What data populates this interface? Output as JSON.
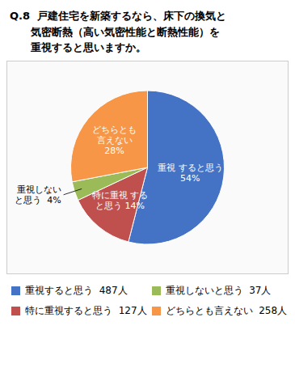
{
  "chart_data": {
    "type": "pie",
    "title": "Q.8  戸建住宅を新築するなら、床下の換気と\n　　気密断熱（高い気密性能と断熱性能）を\n　　重視すると思いますか。",
    "categories": [
      "重視すると思う  487人",
      "特に重視すると思う  127人",
      "重視しないと思う  37人",
      "どちらとも言えない  258人"
    ],
    "values": [
      54,
      14,
      4,
      28
    ],
    "value_labels": [
      "重視 すると思う\n54%",
      "特に重視 する\nと思う 14%",
      "重視しない\nと思う  4%",
      "どちらとも\n言えない\n28%"
    ],
    "colors": [
      "#4472C4",
      "#C0504D",
      "#9BBB59",
      "#F79646"
    ],
    "legend": "bottom",
    "data_labels": true
  }
}
